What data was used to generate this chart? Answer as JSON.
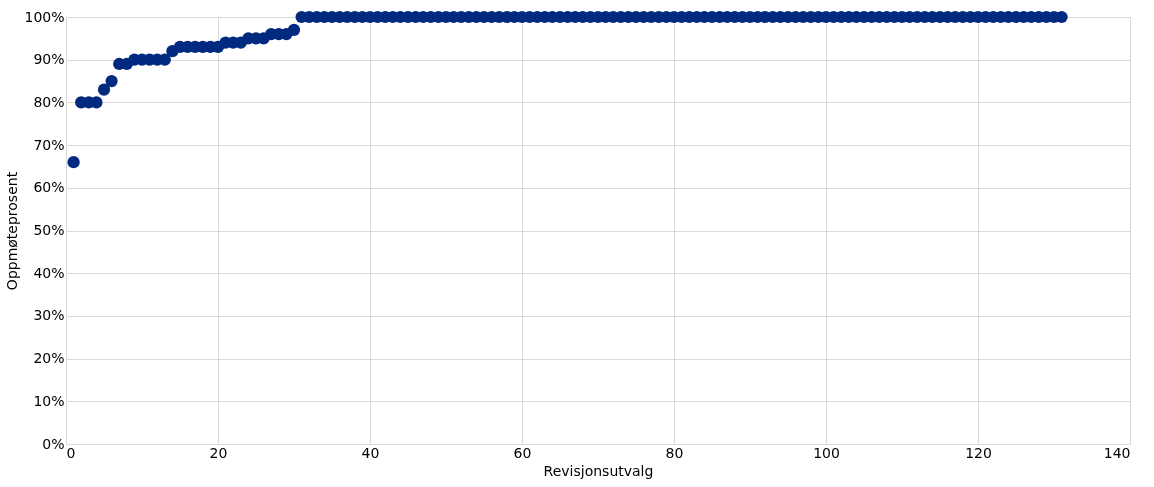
{
  "chart_data": {
    "type": "scatter",
    "xlabel": "Revisjonsutvalg",
    "ylabel": "Oppmøteprosent",
    "marker": "circle",
    "grid": true,
    "legend": false,
    "xlim": [
      0,
      140
    ],
    "xticks": [
      0,
      20,
      40,
      60,
      80,
      100,
      120,
      140
    ],
    "ylim": [
      0,
      100
    ],
    "yticks": [
      {
        "value": 0,
        "label": "0%"
      },
      {
        "value": 10,
        "label": "10%"
      },
      {
        "value": 20,
        "label": "20%"
      },
      {
        "value": 30,
        "label": "30%"
      },
      {
        "value": 40,
        "label": "40%"
      },
      {
        "value": 50,
        "label": "50%"
      },
      {
        "value": 60,
        "label": "60%"
      },
      {
        "value": 70,
        "label": "70%"
      },
      {
        "value": 80,
        "label": "80%"
      },
      {
        "value": 90,
        "label": "90%"
      },
      {
        "value": 100,
        "label": "100%"
      }
    ],
    "x": [
      1,
      2,
      3,
      4,
      5,
      6,
      7,
      8,
      9,
      10,
      11,
      12,
      13,
      14,
      15,
      16,
      17,
      18,
      19,
      20,
      21,
      22,
      23,
      24,
      25,
      26,
      27,
      28,
      29,
      30,
      31,
      32,
      33,
      34,
      35,
      36,
      37,
      38,
      39,
      40,
      41,
      42,
      43,
      44,
      45,
      46,
      47,
      48,
      49,
      50,
      51,
      52,
      53,
      54,
      55,
      56,
      57,
      58,
      59,
      60,
      61,
      62,
      63,
      64,
      65,
      66,
      67,
      68,
      69,
      70,
      71,
      72,
      73,
      74,
      75,
      76,
      77,
      78,
      79,
      80,
      81,
      82,
      83,
      84,
      85,
      86,
      87,
      88,
      89,
      90,
      91,
      92,
      93,
      94,
      95,
      96,
      97,
      98,
      99,
      100,
      101,
      102,
      103,
      104,
      105,
      106,
      107,
      108,
      109,
      110,
      111,
      112,
      113,
      114,
      115,
      116,
      117,
      118,
      119,
      120,
      121,
      122,
      123,
      124,
      125,
      126,
      127,
      128,
      129,
      130,
      131
    ],
    "series": [
      {
        "color": "#002a80",
        "values": [
          66,
          80,
          80,
          80,
          83,
          85,
          89,
          89,
          90,
          90,
          90,
          90,
          90,
          92,
          93,
          93,
          93,
          93,
          93,
          93,
          94,
          94,
          94,
          95,
          95,
          95,
          96,
          96,
          96,
          97,
          100,
          100,
          100,
          100,
          100,
          100,
          100,
          100,
          100,
          100,
          100,
          100,
          100,
          100,
          100,
          100,
          100,
          100,
          100,
          100,
          100,
          100,
          100,
          100,
          100,
          100,
          100,
          100,
          100,
          100,
          100,
          100,
          100,
          100,
          100,
          100,
          100,
          100,
          100,
          100,
          100,
          100,
          100,
          100,
          100,
          100,
          100,
          100,
          100,
          100,
          100,
          100,
          100,
          100,
          100,
          100,
          100,
          100,
          100,
          100,
          100,
          100,
          100,
          100,
          100,
          100,
          100,
          100,
          100,
          100,
          100,
          100,
          100,
          100,
          100,
          100,
          100,
          100,
          100,
          100,
          100,
          100,
          100,
          100,
          100,
          100,
          100,
          100,
          100,
          100,
          100,
          100,
          100,
          100,
          100,
          100,
          100,
          100,
          100,
          100,
          100
        ]
      }
    ]
  }
}
